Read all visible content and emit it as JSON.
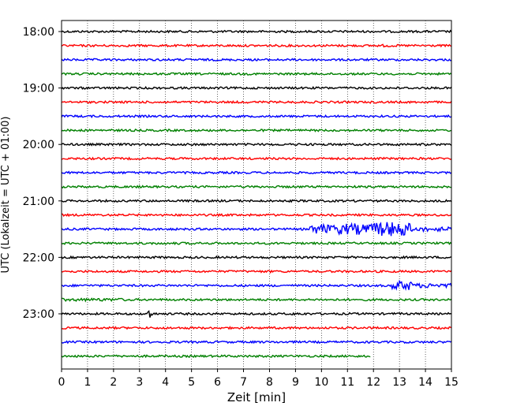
{
  "chart_data": {
    "type": "line",
    "title": "",
    "xlabel": "Zeit  [min]",
    "ylabel": "UTC (Lokalzeit = UTC + 01:00)",
    "xlim": [
      0,
      15
    ],
    "x_ticks": [
      0,
      1,
      2,
      3,
      4,
      5,
      6,
      7,
      8,
      9,
      10,
      11,
      12,
      13,
      14,
      15
    ],
    "x_tick_labels": [
      "0",
      "1",
      "2",
      "3",
      "4",
      "5",
      "6",
      "7",
      "8",
      "9",
      "10",
      "11",
      "12",
      "13",
      "14",
      "15"
    ],
    "y_ticks": [
      {
        "label": "18:00",
        "trace_index": 0
      },
      {
        "label": "19:00",
        "trace_index": 4
      },
      {
        "label": "20:00",
        "trace_index": 8
      },
      {
        "label": "21:00",
        "trace_index": 12
      },
      {
        "label": "22:00",
        "trace_index": 16
      },
      {
        "label": "23:00",
        "trace_index": 20
      }
    ],
    "grid": "vertical dotted at each minute",
    "colors": [
      "#000000",
      "#ff0000",
      "#0000ff",
      "#008000"
    ],
    "traces_per_hour": 4,
    "trace_minutes": 15,
    "series": [
      {
        "start": "18:00",
        "color": "#000000",
        "end_min": 15,
        "events": []
      },
      {
        "start": "18:15",
        "color": "#ff0000",
        "end_min": 15,
        "events": [
          {
            "from": 12.2,
            "to": 12.8,
            "amp": 0.7
          }
        ]
      },
      {
        "start": "18:30",
        "color": "#0000ff",
        "end_min": 15,
        "events": []
      },
      {
        "start": "18:45",
        "color": "#008000",
        "end_min": 15,
        "events": []
      },
      {
        "start": "19:00",
        "color": "#000000",
        "end_min": 15,
        "events": []
      },
      {
        "start": "19:15",
        "color": "#ff0000",
        "end_min": 15,
        "events": []
      },
      {
        "start": "19:30",
        "color": "#0000ff",
        "end_min": 15,
        "events": []
      },
      {
        "start": "19:45",
        "color": "#008000",
        "end_min": 15,
        "events": []
      },
      {
        "start": "20:00",
        "color": "#000000",
        "end_min": 15,
        "events": []
      },
      {
        "start": "20:15",
        "color": "#ff0000",
        "end_min": 15,
        "events": []
      },
      {
        "start": "20:30",
        "color": "#0000ff",
        "end_min": 15,
        "events": []
      },
      {
        "start": "20:45",
        "color": "#008000",
        "end_min": 15,
        "events": []
      },
      {
        "start": "21:00",
        "color": "#000000",
        "end_min": 15,
        "events": []
      },
      {
        "start": "21:15",
        "color": "#ff0000",
        "end_min": 15,
        "events": []
      },
      {
        "start": "21:30",
        "color": "#0000ff",
        "end_min": 15,
        "events": [
          {
            "from": 9.5,
            "to": 10.5,
            "amp": 2.5
          },
          {
            "from": 10.5,
            "to": 12.0,
            "amp": 3.0
          },
          {
            "from": 12.0,
            "to": 13.4,
            "amp": 4.0
          },
          {
            "from": 13.4,
            "to": 15.0,
            "amp": 1.2
          }
        ]
      },
      {
        "start": "21:45",
        "color": "#008000",
        "end_min": 15,
        "events": [
          {
            "from": 2.5,
            "to": 6.5,
            "amp": 0.6
          }
        ]
      },
      {
        "start": "22:00",
        "color": "#000000",
        "end_min": 15,
        "events": []
      },
      {
        "start": "22:15",
        "color": "#ff0000",
        "end_min": 15,
        "events": [
          {
            "from": 7.6,
            "to": 8.2,
            "amp": 0.6
          }
        ]
      },
      {
        "start": "22:30",
        "color": "#0000ff",
        "end_min": 15,
        "events": [
          {
            "from": 12.7,
            "to": 13.5,
            "amp": 2.5
          },
          {
            "from": 13.5,
            "to": 15.0,
            "amp": 1.2
          }
        ]
      },
      {
        "start": "22:45",
        "color": "#008000",
        "end_min": 15,
        "events": [
          {
            "from": 0.0,
            "to": 2.6,
            "amp": 0.8
          }
        ]
      },
      {
        "start": "23:00",
        "color": "#000000",
        "end_min": 15,
        "events": [
          {
            "from": 3.3,
            "to": 3.5,
            "amp": 2.6
          },
          {
            "from": 8.8,
            "to": 9.4,
            "amp": 0.7
          }
        ]
      },
      {
        "start": "23:15",
        "color": "#ff0000",
        "end_min": 15,
        "events": []
      },
      {
        "start": "23:30",
        "color": "#0000ff",
        "end_min": 15,
        "events": []
      },
      {
        "start": "23:45",
        "color": "#008000",
        "end_min": 11.9,
        "events": []
      }
    ]
  }
}
